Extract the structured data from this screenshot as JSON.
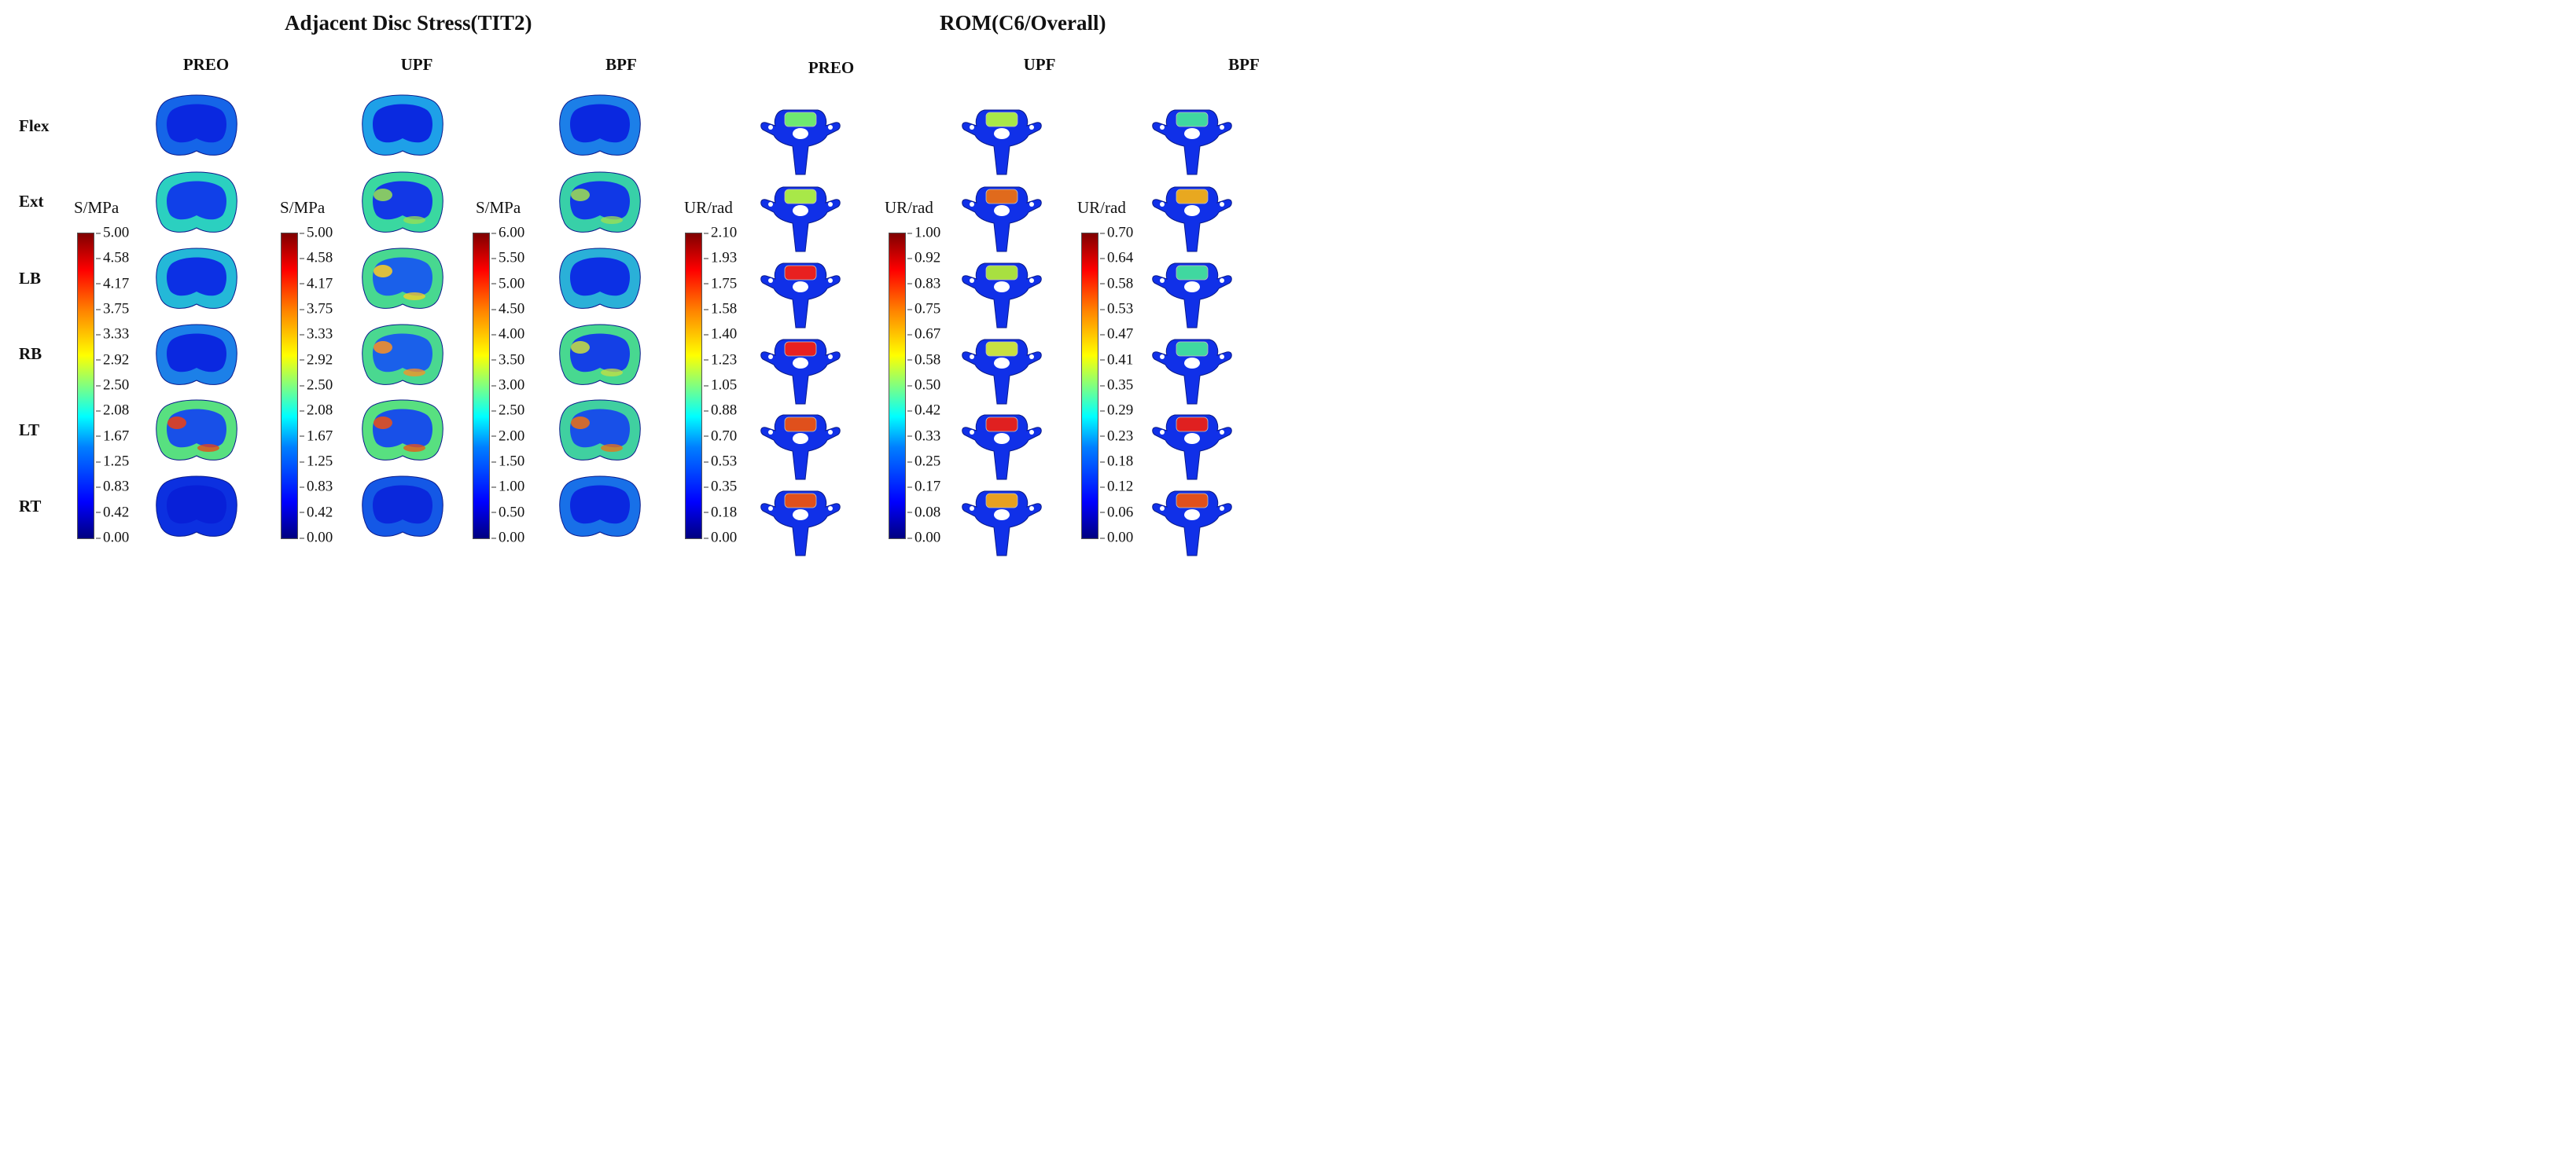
{
  "titles": {
    "left": "Adjacent Disc Stress(TIT2)",
    "right": "ROM(C6/Overall)"
  },
  "columns": {
    "disc": [
      "PREO",
      "UPF",
      "BPF"
    ],
    "rom": [
      "PREO",
      "UPF",
      "BPF"
    ]
  },
  "rows": [
    "Flex",
    "Ext",
    "LB",
    "RB",
    "LT",
    "RT"
  ],
  "colorbars": [
    {
      "unit": "S/MPa",
      "ticks": [
        "5.00",
        "4.58",
        "4.17",
        "3.75",
        "3.33",
        "2.92",
        "2.50",
        "2.08",
        "1.67",
        "1.25",
        "0.83",
        "0.42",
        "0.00"
      ]
    },
    {
      "unit": "S/MPa",
      "ticks": [
        "5.00",
        "4.58",
        "4.17",
        "3.75",
        "3.33",
        "2.92",
        "2.50",
        "2.08",
        "1.67",
        "1.25",
        "0.83",
        "0.42",
        "0.00"
      ]
    },
    {
      "unit": "S/MPa",
      "ticks": [
        "6.00",
        "5.50",
        "5.00",
        "4.50",
        "4.00",
        "3.50",
        "3.00",
        "2.50",
        "2.00",
        "1.50",
        "1.00",
        "0.50",
        "0.00"
      ]
    },
    {
      "unit": "UR/rad",
      "ticks": [
        "2.10",
        "1.93",
        "1.75",
        "1.58",
        "1.40",
        "1.23",
        "1.05",
        "0.88",
        "0.70",
        "0.53",
        "0.35",
        "0.18",
        "0.00"
      ]
    },
    {
      "unit": "UR/rad",
      "ticks": [
        "1.00",
        "0.92",
        "0.83",
        "0.75",
        "0.67",
        "0.58",
        "0.50",
        "0.42",
        "0.33",
        "0.25",
        "0.17",
        "0.08",
        "0.00"
      ]
    },
    {
      "unit": "UR/rad",
      "ticks": [
        "0.70",
        "0.64",
        "0.58",
        "0.53",
        "0.47",
        "0.41",
        "0.35",
        "0.29",
        "0.23",
        "0.18",
        "0.12",
        "0.06",
        "0.00"
      ]
    }
  ],
  "disc_fields": [
    [
      {
        "ring": "#1565e8",
        "inner": "#0a28e0",
        "hot": null
      },
      {
        "ring": "#1ea0e8",
        "inner": "#0a2ae0",
        "hot": null
      },
      {
        "ring": "#1c7fe8",
        "inner": "#0a28e0",
        "hot": null
      }
    ],
    [
      {
        "ring": "#2bd0c0",
        "inner": "#1040e8",
        "hot": null
      },
      {
        "ring": "#3ad8a0",
        "inner": "#1238e6",
        "hot": "#9be050"
      },
      {
        "ring": "#38d0a8",
        "inner": "#1038e6",
        "hot": "#a0e050"
      }
    ],
    [
      {
        "ring": "#24b8d8",
        "inner": "#0c30e4",
        "hot": null
      },
      {
        "ring": "#48d890",
        "inner": "#1a60ea",
        "hot": "#ffd020"
      },
      {
        "ring": "#2ab0d8",
        "inner": "#0c30e4",
        "hot": null
      }
    ],
    [
      {
        "ring": "#1c80e8",
        "inner": "#0a28e0",
        "hot": null
      },
      {
        "ring": "#4ad890",
        "inner": "#1a60ea",
        "hot": "#ff9020"
      },
      {
        "ring": "#48d890",
        "inner": "#1440e6",
        "hot": "#c8e040"
      }
    ],
    [
      {
        "ring": "#58e080",
        "inner": "#1850e8",
        "hot": "#f04010"
      },
      {
        "ring": "#58e080",
        "inner": "#1850e8",
        "hot": "#f05010"
      },
      {
        "ring": "#40d0a0",
        "inner": "#1850e8",
        "hot": "#f07010"
      }
    ],
    [
      {
        "ring": "#0c30e0",
        "inner": "#0820d8",
        "hot": null
      },
      {
        "ring": "#1458e6",
        "inner": "#0a28dc",
        "hot": null
      },
      {
        "ring": "#1870e8",
        "inner": "#0a28e0",
        "hot": null
      }
    ]
  ],
  "rom_fields": [
    [
      "#6ee870",
      "#a8e848",
      "#40d8a0"
    ],
    [
      "#a8e848",
      "#e06a1c",
      "#e8a820"
    ],
    [
      "#e82020",
      "#a8e040",
      "#40d8a0"
    ],
    [
      "#e82020",
      "#c8e040",
      "#40d8a0"
    ],
    [
      "#e0501c",
      "#e02020",
      "#e02020"
    ],
    [
      "#e0501c",
      "#e8a020",
      "#e0501c"
    ]
  ]
}
